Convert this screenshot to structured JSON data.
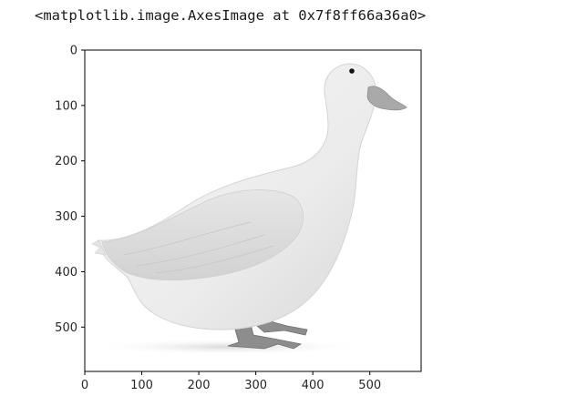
{
  "output": {
    "repr_text": "<matplotlib.image.AxesImage at 0x7f8ff66a36a0>"
  },
  "chart_data": {
    "type": "image",
    "image_subject": "white duck standing, grayscale",
    "colormap": "gray",
    "xlim": [
      0,
      590
    ],
    "ylim": [
      580,
      0
    ],
    "x_ticks": [
      {
        "value": 0,
        "label": "0"
      },
      {
        "value": 100,
        "label": "100"
      },
      {
        "value": 200,
        "label": "200"
      },
      {
        "value": 300,
        "label": "300"
      },
      {
        "value": 400,
        "label": "400"
      },
      {
        "value": 500,
        "label": "500"
      }
    ],
    "y_ticks": [
      {
        "value": 0,
        "label": "0"
      },
      {
        "value": 100,
        "label": "100"
      },
      {
        "value": 200,
        "label": "200"
      },
      {
        "value": 300,
        "label": "300"
      },
      {
        "value": 400,
        "label": "400"
      },
      {
        "value": 500,
        "label": "500"
      }
    ],
    "grid": false
  }
}
